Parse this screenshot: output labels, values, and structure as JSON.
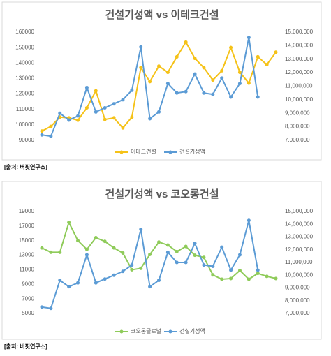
{
  "chart_data": [
    {
      "type": "line",
      "title": "건설기성액 vs 이테크건설",
      "source": "[출처: 버핏연구소]",
      "categories": [
        null,
        null,
        null,
        null,
        null,
        null,
        null,
        null,
        null,
        null,
        null,
        null,
        null,
        null,
        null,
        null,
        null,
        null,
        null,
        null,
        null,
        null,
        null,
        null,
        null,
        null,
        null
      ],
      "ylim": [
        90000,
        160000
      ],
      "yticks": [
        90000,
        100000,
        110000,
        120000,
        130000,
        140000,
        150000,
        160000
      ],
      "y2lim": [
        7000000,
        15000000
      ],
      "y2ticks": [
        {
          "value": 7000000,
          "label": "7,000,000"
        },
        {
          "value": 8000000,
          "label": "8,000,000"
        },
        {
          "value": 9000000,
          "label": "9,000,000"
        },
        {
          "value": 10000000,
          "label": "10,000,000"
        },
        {
          "value": 11000000,
          "label": "11,000,000"
        },
        {
          "value": 12000000,
          "label": "12,000,000"
        },
        {
          "value": 13000000,
          "label": "13,000,000"
        },
        {
          "value": 14000000,
          "label": "14,000,000"
        },
        {
          "value": 15000000,
          "label": "15,000,000"
        }
      ],
      "legend": "bottom",
      "series": [
        {
          "name": "이테크건설",
          "color": "#f5c218",
          "values": [
            96000,
            99000,
            105000,
            104500,
            103000,
            111000,
            122000,
            103500,
            104500,
            98000,
            105000,
            137000,
            128000,
            138000,
            134000,
            144000,
            153500,
            143000,
            137000,
            129000,
            135000,
            150000,
            134000,
            127000,
            144000,
            139000,
            147000
          ]
        },
        {
          "name": "건설기성액",
          "color": "#5b9bd5",
          "axis": "y2",
          "values": [
            7400000,
            7300000,
            9000000,
            8500000,
            8800000,
            10900000,
            9100000,
            9400000,
            9700000,
            10000000,
            10700000,
            13900000,
            8600000,
            9100000,
            11200000,
            10500000,
            10600000,
            11900000,
            10500000,
            10400000,
            11600000,
            10200000,
            11200000,
            14600000,
            10200000,
            null,
            null
          ]
        }
      ]
    },
    {
      "type": "line",
      "title": "건설기성액 vs 코오롱건설",
      "source": "[출처: 버핏연구소]",
      "categories": [
        null,
        null,
        null,
        null,
        null,
        null,
        null,
        null,
        null,
        null,
        null,
        null,
        null,
        null,
        null,
        null,
        null,
        null,
        null,
        null,
        null,
        null,
        null,
        null,
        null,
        null,
        null
      ],
      "ylim": [
        5000,
        19000
      ],
      "yticks": [
        5000,
        7000,
        9000,
        11000,
        13000,
        15000,
        17000,
        19000
      ],
      "y2lim": [
        7000000,
        15000000
      ],
      "y2ticks": [
        {
          "value": 7000000,
          "label": "7,000,000"
        },
        {
          "value": 8000000,
          "label": "8,000,000"
        },
        {
          "value": 9000000,
          "label": "9,000,000"
        },
        {
          "value": 10000000,
          "label": "10,000,000"
        },
        {
          "value": 11000000,
          "label": "11,000,000"
        },
        {
          "value": 12000000,
          "label": "12,000,000"
        },
        {
          "value": 13000000,
          "label": "13,000,000"
        },
        {
          "value": 14000000,
          "label": "14,000,000"
        },
        {
          "value": 15000000,
          "label": "15,000,000"
        }
      ],
      "legend": "bottom",
      "series": [
        {
          "name": "코오롱글로벌",
          "color": "#8fcb5a",
          "values": [
            14000,
            13400,
            13400,
            17500,
            15000,
            13800,
            15400,
            14900,
            14000,
            13300,
            11000,
            11200,
            13100,
            14800,
            14400,
            13500,
            14200,
            13000,
            12700,
            10300,
            9700,
            9800,
            10900,
            9700,
            10500,
            10100,
            9800
          ]
        },
        {
          "name": "건설기성액",
          "color": "#5b9bd5",
          "axis": "y2",
          "values": [
            7500000,
            7400000,
            9600000,
            9100000,
            9400000,
            11600000,
            9400000,
            9700000,
            10000000,
            10300000,
            10800000,
            13600000,
            9100000,
            9600000,
            11800000,
            11000000,
            11000000,
            12500000,
            10800000,
            10700000,
            12200000,
            10400000,
            11600000,
            14300000,
            10400000,
            null,
            null
          ]
        }
      ]
    }
  ]
}
